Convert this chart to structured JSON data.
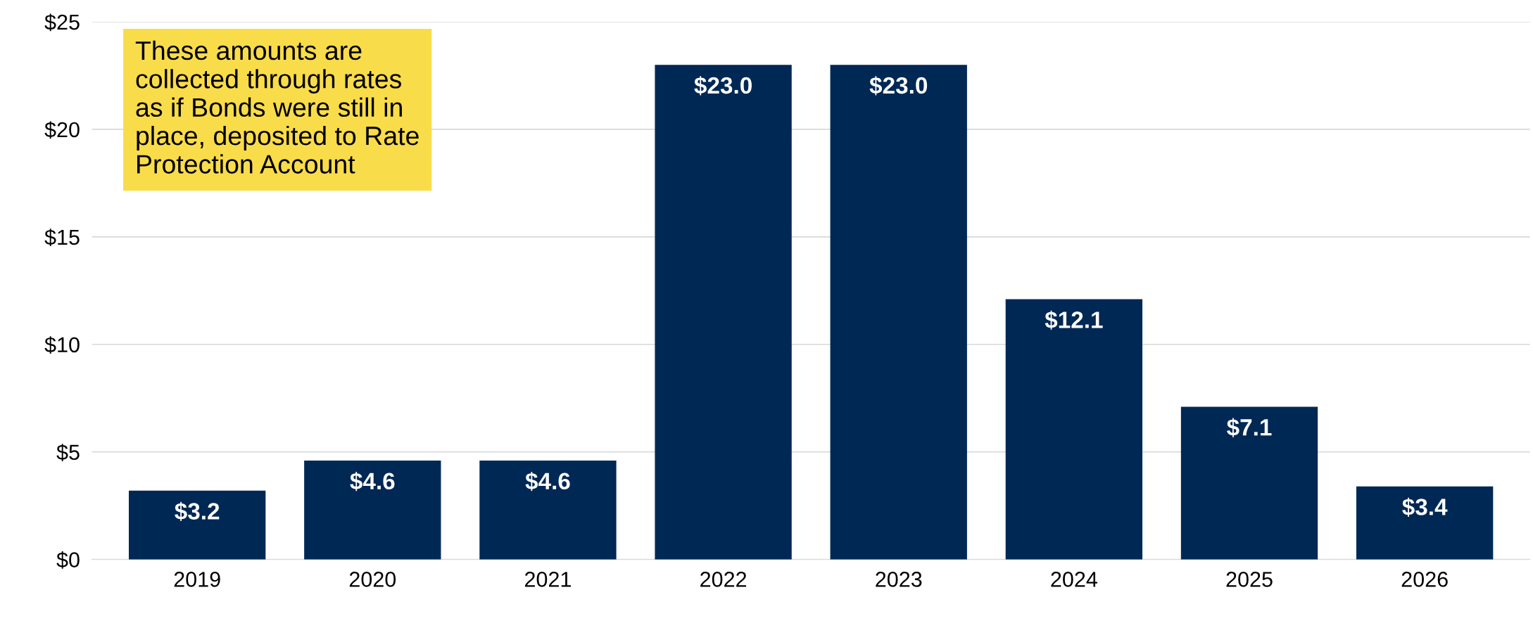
{
  "chart_data": {
    "type": "bar",
    "categories": [
      "2019",
      "2020",
      "2021",
      "2022",
      "2023",
      "2024",
      "2025",
      "2026"
    ],
    "values": [
      3.2,
      4.6,
      4.6,
      23.0,
      23.0,
      12.1,
      7.1,
      3.4
    ],
    "value_labels": [
      "$3.2",
      "$4.6",
      "$4.6",
      "$23.0",
      "$23.0",
      "$12.1",
      "$7.1",
      "$3.4"
    ],
    "color": "#002855",
    "ylim": [
      0,
      25
    ],
    "yticks": [
      {
        "value": 0,
        "label": "$0"
      },
      {
        "value": 5,
        "label": "$5"
      },
      {
        "value": 10,
        "label": "$10"
      },
      {
        "value": 15,
        "label": "$15"
      },
      {
        "value": 20,
        "label": "$20"
      },
      {
        "value": 25,
        "label": "$25"
      }
    ],
    "grid": "y",
    "annotations": [
      "These amounts are\ncollected through rates\nas if Bonds were still in\nplace, deposited to Rate\nProtection Account"
    ]
  }
}
